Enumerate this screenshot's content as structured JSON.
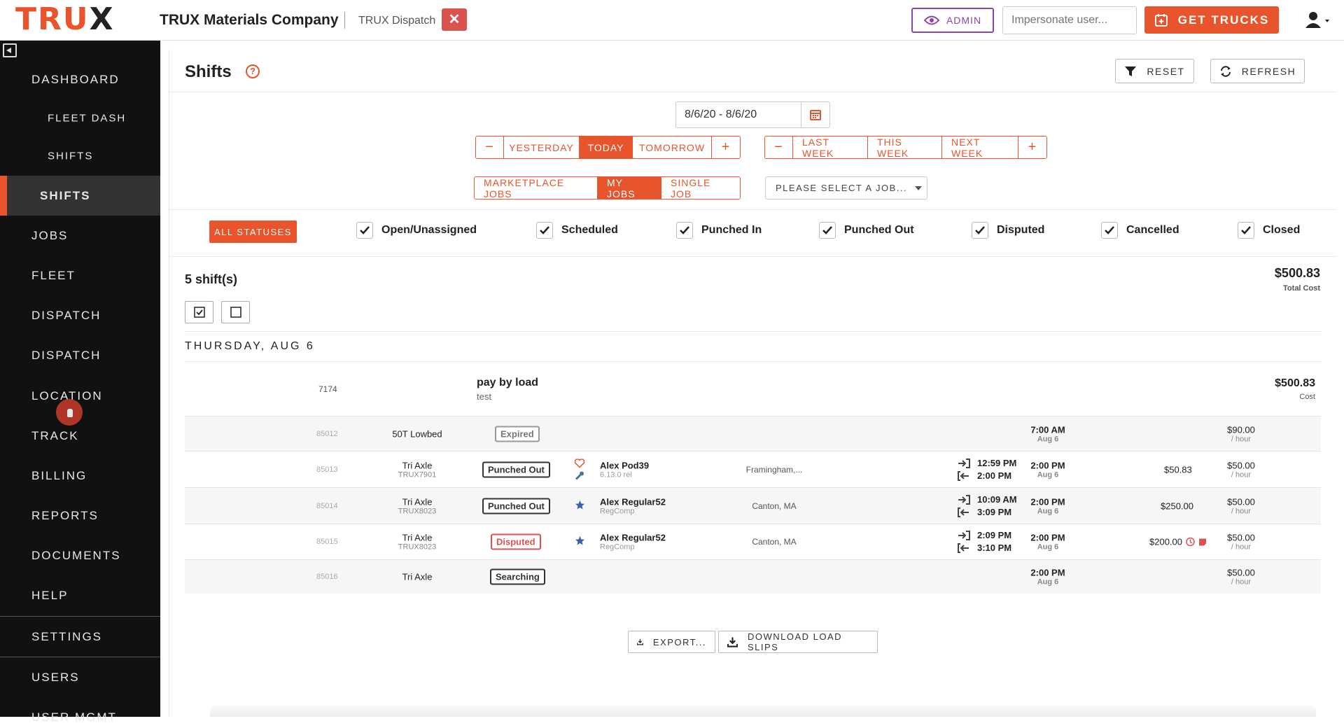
{
  "header": {
    "logo_main": "TRU",
    "logo_x": "X",
    "company": "TRUX Materials Company",
    "app": "TRUX Dispatch",
    "close_glyph": "✕",
    "admin_label": "ADMIN",
    "impersonate_placeholder": "Impersonate user...",
    "get_trucks_label": "GET TRUCKS",
    "accent": "#e8542b",
    "admin_color": "#8e44ad"
  },
  "sidebar": {
    "items": [
      {
        "label": "DASHBOARD"
      },
      {
        "label": "FLEET DASH"
      },
      {
        "label": "SHIFTS"
      },
      {
        "label": "SHIFTS"
      },
      {
        "label": "JOBS"
      },
      {
        "label": "FLEET"
      },
      {
        "label": "DISPATCH"
      },
      {
        "label": "DISPATCH"
      },
      {
        "label": "LOCATION"
      },
      {
        "label": "TRACK"
      },
      {
        "label": "BILLING"
      },
      {
        "label": "REPORTS"
      },
      {
        "label": "DOCUMENTS"
      },
      {
        "label": "HELP"
      },
      {
        "label": "SETTINGS"
      },
      {
        "label": "USERS"
      },
      {
        "label": "USER MGMT"
      }
    ]
  },
  "page": {
    "title": "Shifts",
    "help_glyph": "?",
    "reset_label": "RESET",
    "refresh_label": "REFRESH"
  },
  "filters": {
    "date_range": "8/6/20  -  8/6/20",
    "minus": "−",
    "plus": "+",
    "day_buttons": [
      "YESTERDAY",
      "TODAY",
      "TOMORROW"
    ],
    "week_buttons": [
      "LAST WEEK",
      "THIS WEEK",
      "NEXT WEEK"
    ],
    "job_buttons": [
      "MARKETPLACE JOBS",
      "MY JOBS",
      "SINGLE JOB"
    ],
    "job_select": "PLEASE SELECT A JOB...",
    "all_statuses": "ALL STATUSES",
    "statuses": [
      "Open/Unassigned",
      "Scheduled",
      "Punched In",
      "Punched Out",
      "Disputed",
      "Cancelled",
      "Closed"
    ]
  },
  "summary": {
    "count": "5 shift(s)",
    "total": "$500.83",
    "total_label": "Total Cost"
  },
  "day": {
    "heading": "THURSDAY, AUG 6",
    "job": {
      "id": "7174",
      "name": "pay by load",
      "desc": "test",
      "cost": "$500.83",
      "cost_label": "Cost"
    },
    "shifts": [
      {
        "id": "85012",
        "truck": "50T Lowbed",
        "truck_id": "",
        "status": "Expired",
        "driver": "",
        "driver_sub": "",
        "location": "",
        "start": "7:00 AM",
        "start_date": "Aug 6",
        "in": "",
        "out": "",
        "rate": "$90.00",
        "rate_unit": "/ hour",
        "cost": ""
      },
      {
        "id": "85013",
        "truck": "Tri Axle",
        "truck_id": "TRUX7901",
        "status": "Punched Out",
        "driver": "Alex Pod39",
        "driver_sub": "6.13.0 rel",
        "location": "Framingham,...",
        "start": "2:00 PM",
        "start_date": "Aug 6",
        "in": "12:59 PM",
        "out": "2:00 PM",
        "rate": "$50.00",
        "rate_unit": "/ hour",
        "cost": "$50.83"
      },
      {
        "id": "85014",
        "truck": "Tri Axle",
        "truck_id": "TRUX8023",
        "status": "Punched Out",
        "driver": "Alex Regular52",
        "driver_sub": "RegComp",
        "location": "Canton, MA",
        "start": "2:00 PM",
        "start_date": "Aug 6",
        "in": "10:09 AM",
        "out": "3:09 PM",
        "rate": "$50.00",
        "rate_unit": "/ hour",
        "cost": "$250.00"
      },
      {
        "id": "85015",
        "truck": "Tri Axle",
        "truck_id": "TRUX8023",
        "status": "Disputed",
        "driver": "Alex Regular52",
        "driver_sub": "RegComp",
        "location": "Canton, MA",
        "start": "2:00 PM",
        "start_date": "Aug 6",
        "in": "2:09 PM",
        "out": "3:10 PM",
        "rate": "$50.00",
        "rate_unit": "/ hour",
        "cost": "$200.00"
      },
      {
        "id": "85016",
        "truck": "Tri Axle",
        "truck_id": "",
        "status": "Searching",
        "driver": "",
        "driver_sub": "",
        "location": "",
        "start": "2:00 PM",
        "start_date": "Aug 6",
        "in": "",
        "out": "",
        "rate": "$50.00",
        "rate_unit": "/ hour",
        "cost": ""
      }
    ]
  },
  "footer": {
    "export_label": "EXPORT...",
    "download_label": "DOWNLOAD LOAD SLIPS"
  }
}
